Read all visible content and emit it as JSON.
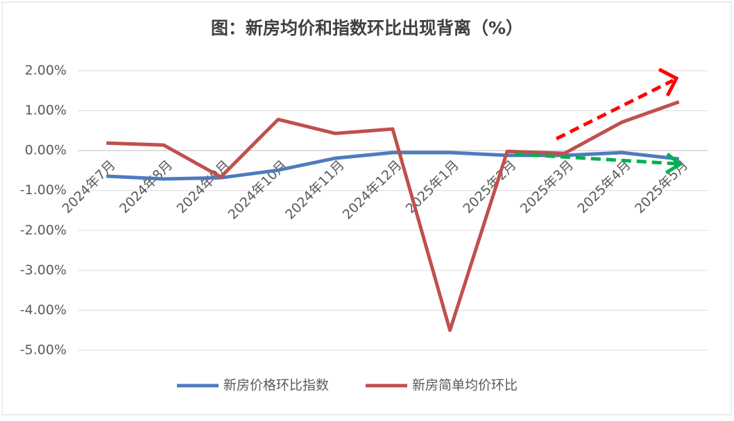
{
  "chart_data": {
    "type": "line",
    "title": "图：新房均价和指数环比出现背离（%）",
    "categories": [
      "2024年7月",
      "2024年8月",
      "2024年9月",
      "2024年10月",
      "2024年11月",
      "2024年12月",
      "2025年1月",
      "2025年2月",
      "2025年3月",
      "2025年4月",
      "2025年5月"
    ],
    "series": [
      {
        "name": "新房价格环比指数",
        "color": "#4f7bbd",
        "values": [
          -0.64,
          -0.71,
          -0.68,
          -0.49,
          -0.19,
          -0.05,
          -0.05,
          -0.12,
          -0.12,
          -0.05,
          -0.21
        ]
      },
      {
        "name": "新房简单均价环比",
        "color": "#c0504d",
        "values": [
          0.19,
          0.14,
          -0.66,
          0.78,
          0.43,
          0.54,
          -4.5,
          -0.02,
          -0.07,
          0.71,
          1.22
        ]
      }
    ],
    "ylim": [
      -5,
      2
    ],
    "yticks": [
      {
        "value": -5,
        "label": "-5.00%"
      },
      {
        "value": -4,
        "label": "-4.00%"
      },
      {
        "value": -3,
        "label": "-3.00%"
      },
      {
        "value": -2,
        "label": "-2.00%"
      },
      {
        "value": -1,
        "label": "-1.00%"
      },
      {
        "value": 0,
        "label": "0.00%"
      },
      {
        "value": 1,
        "label": "1.00%"
      },
      {
        "value": 2,
        "label": "2.00%"
      }
    ],
    "grid": true,
    "legend": "bottom"
  }
}
